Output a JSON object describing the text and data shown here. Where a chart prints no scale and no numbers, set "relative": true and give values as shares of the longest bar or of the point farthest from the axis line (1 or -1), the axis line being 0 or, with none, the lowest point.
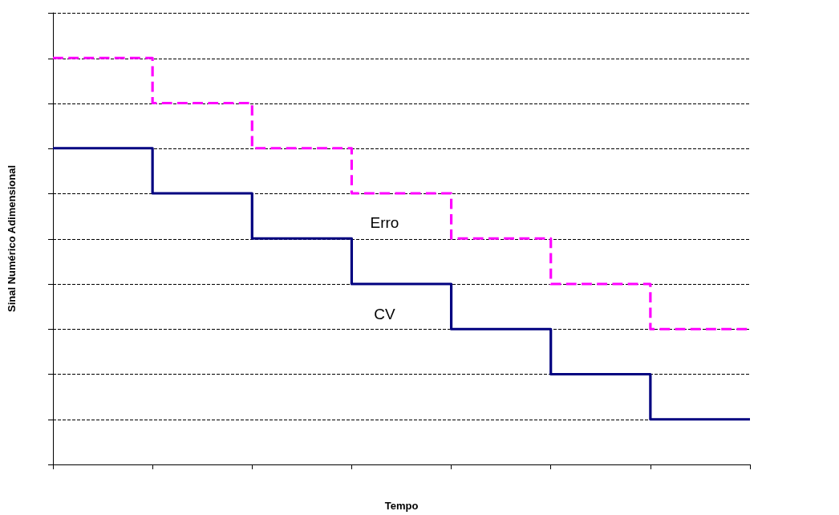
{
  "chart_data": {
    "type": "step",
    "relative": true,
    "xlabel": "Tempo",
    "ylabel": "Sinal Numérico Adimensional",
    "categories": [
      null,
      null,
      null,
      null,
      null,
      null,
      null,
      null
    ],
    "grid": "y",
    "legend": false,
    "marker": "none",
    "series": [
      {
        "name": "Erro",
        "color": "#ff00ff",
        "line_style": "dashed",
        "values": [
          1,
          0.889,
          0.778,
          0.667,
          0.556,
          0.444,
          0.333,
          0.333
        ]
      },
      {
        "name": "CV",
        "color": "#000080",
        "line_style": "solid",
        "values": [
          0.778,
          0.667,
          0.556,
          0.444,
          0.333,
          0.222,
          0.111,
          0.111
        ]
      }
    ]
  }
}
